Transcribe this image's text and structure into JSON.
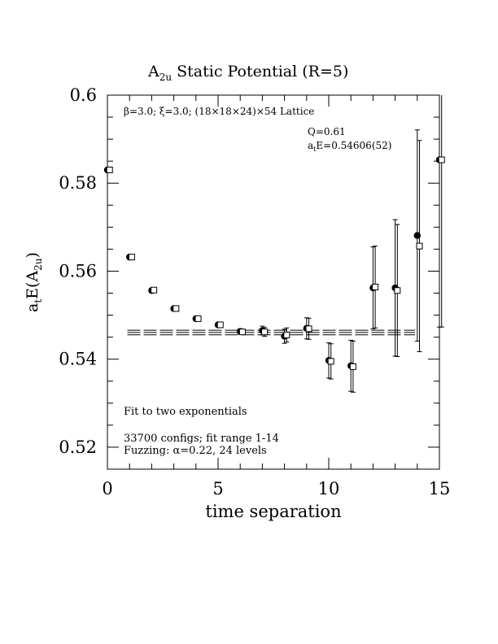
{
  "chart_data": {
    "type": "scatter",
    "title": "A",
    "title_sub": "2u",
    "title_rest": " Static Potential (R=5)",
    "xlabel": "time separation",
    "ylabel_main": "a",
    "ylabel_sub1": "t",
    "ylabel_mid": "E(A",
    "ylabel_sub2": "2u",
    "ylabel_end": ")",
    "xlim": [
      0,
      15
    ],
    "ylim": [
      0.515,
      0.6
    ],
    "x_ticks": [
      0,
      5,
      10,
      15
    ],
    "y_ticks": [
      0.52,
      0.54,
      0.56,
      0.58,
      0.6
    ],
    "x_tick_labels": [
      "0",
      "5",
      "10",
      "15"
    ],
    "y_tick_labels": [
      "0.52",
      "0.54",
      "0.56",
      "0.58",
      "0.6"
    ],
    "header_text": "β=3.0; ξ=3.0; (18×18×24)×54 Lattice",
    "fit_q": "Q=0.61",
    "fit_energy_main": "a",
    "fit_energy_sub": "t",
    "fit_energy_rest": "E=0.54606(52)",
    "note_fit": "Fit to two exponentials",
    "note_configs": "33700 configs; fit range 1-14",
    "note_fuzzing": "Fuzzing: α=0.22, 24 levels",
    "fit": {
      "value": 0.54606,
      "error": 0.00052,
      "x_start": 0.9,
      "x_end": 13.9
    },
    "series": [
      {
        "marker": "filled-circle",
        "points": [
          {
            "x": 0,
            "y": 0.583,
            "err": 0.0004
          },
          {
            "x": 1,
            "y": 0.5632,
            "err": 0.0004
          },
          {
            "x": 2,
            "y": 0.5556,
            "err": 0.0005
          },
          {
            "x": 3,
            "y": 0.5515,
            "err": 0.0005
          },
          {
            "x": 4,
            "y": 0.5492,
            "err": 0.0005
          },
          {
            "x": 5,
            "y": 0.5478,
            "err": 0.0005
          },
          {
            "x": 6,
            "y": 0.5463,
            "err": 0.0006
          },
          {
            "x": 7,
            "y": 0.5465,
            "err": 0.001
          },
          {
            "x": 8,
            "y": 0.5452,
            "err": 0.0016
          },
          {
            "x": 9,
            "y": 0.547,
            "err": 0.0024
          },
          {
            "x": 10,
            "y": 0.5397,
            "err": 0.004
          },
          {
            "x": 11,
            "y": 0.5385,
            "err": 0.0058
          },
          {
            "x": 12,
            "y": 0.5562,
            "err": 0.0093
          },
          {
            "x": 13,
            "y": 0.5562,
            "err": 0.0155
          },
          {
            "x": 14,
            "y": 0.5681,
            "err": 0.024
          },
          {
            "x": 15,
            "y": 0.5853,
            "err": 0.038
          }
        ]
      },
      {
        "marker": "open-square",
        "points": [
          {
            "x": 0.1,
            "y": 0.583,
            "err": 0.0004
          },
          {
            "x": 1.1,
            "y": 0.5632,
            "err": 0.0004
          },
          {
            "x": 2.1,
            "y": 0.5557,
            "err": 0.0005
          },
          {
            "x": 3.1,
            "y": 0.5515,
            "err": 0.0005
          },
          {
            "x": 4.1,
            "y": 0.5492,
            "err": 0.0005
          },
          {
            "x": 5.1,
            "y": 0.5478,
            "err": 0.0005
          },
          {
            "x": 6.1,
            "y": 0.5462,
            "err": 0.0006
          },
          {
            "x": 7.1,
            "y": 0.5462,
            "err": 0.001
          },
          {
            "x": 8.1,
            "y": 0.5455,
            "err": 0.0016
          },
          {
            "x": 9.1,
            "y": 0.5469,
            "err": 0.0024
          },
          {
            "x": 10.1,
            "y": 0.5395,
            "err": 0.004
          },
          {
            "x": 11.1,
            "y": 0.5383,
            "err": 0.0058
          },
          {
            "x": 12.1,
            "y": 0.5564,
            "err": 0.0093
          },
          {
            "x": 13.1,
            "y": 0.5556,
            "err": 0.015
          },
          {
            "x": 14.1,
            "y": 0.5657,
            "err": 0.024
          },
          {
            "x": 15.1,
            "y": 0.5853,
            "err": 0.038
          }
        ]
      }
    ]
  }
}
